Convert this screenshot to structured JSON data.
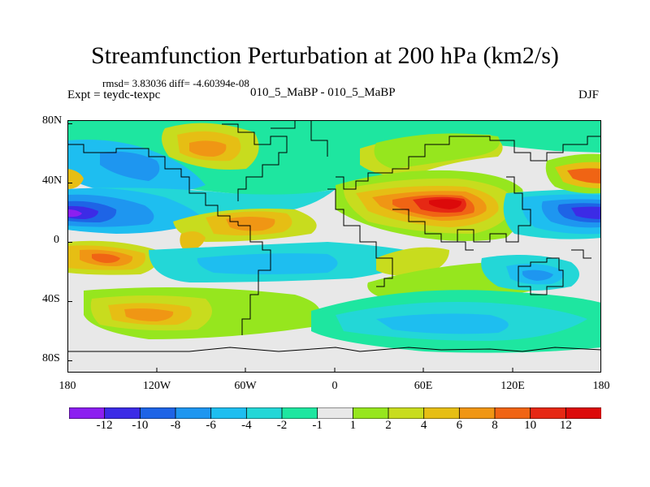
{
  "title": "Streamfunction Perturbation at 200 hPa (km2/s)",
  "stats": "rmsd= 3.83036 diff= -4.60394e-08",
  "expt": "Expt = teydc-texpc",
  "case": "010_5_MaBP - 010_5_MaBP",
  "season": "DJF",
  "lat_labels": [
    "80N",
    "40N",
    "0",
    "40S",
    "80S"
  ],
  "lon_labels": [
    "180",
    "120W",
    "60W",
    "0",
    "60E",
    "120E",
    "180"
  ],
  "colorbar": {
    "labels": [
      "-12",
      "-10",
      "-8",
      "-6",
      "-4",
      "-2",
      "-1",
      "1",
      "2",
      "4",
      "6",
      "8",
      "10",
      "12"
    ],
    "colors": [
      "#8c1ff0",
      "#3c2be6",
      "#1e64e6",
      "#1e96f0",
      "#1ebef0",
      "#23d7d7",
      "#1ee6a0",
      "#e8e8e8",
      "#96e61e",
      "#c8dc1e",
      "#e6be14",
      "#f09614",
      "#f06414",
      "#e62814",
      "#dc0a0a"
    ]
  },
  "map_data": {
    "type": "filled-contour",
    "variable": "streamfunction perturbation",
    "level": "200 hPa",
    "units": "km2/s",
    "features": [
      {
        "lon": -165,
        "lat": 20,
        "value": -10,
        "label": "negative center, central Pacific"
      },
      {
        "lon": 165,
        "lat": 18,
        "value": -10,
        "label": "negative center, west Pacific"
      },
      {
        "lon": -120,
        "lat": 50,
        "value": -6,
        "label": "negative, North America west"
      },
      {
        "lon": -75,
        "lat": 55,
        "value": 6,
        "label": "positive, North America"
      },
      {
        "lon": 75,
        "lat": 25,
        "value": 11,
        "label": "positive center, South Asia"
      },
      {
        "lon": 165,
        "lat": 45,
        "value": 6,
        "label": "positive, North Pacific"
      },
      {
        "lon": -140,
        "lat": -15,
        "value": 6,
        "label": "positive, tropical South Pacific"
      },
      {
        "lon": -120,
        "lat": -55,
        "value": 6,
        "label": "positive, Southern Ocean Pacific"
      },
      {
        "lon": 150,
        "lat": -30,
        "value": -5,
        "label": "negative, Australia east"
      },
      {
        "lon": -95,
        "lat": 0,
        "value": 5,
        "label": "positive, eastern Pacific"
      }
    ]
  }
}
